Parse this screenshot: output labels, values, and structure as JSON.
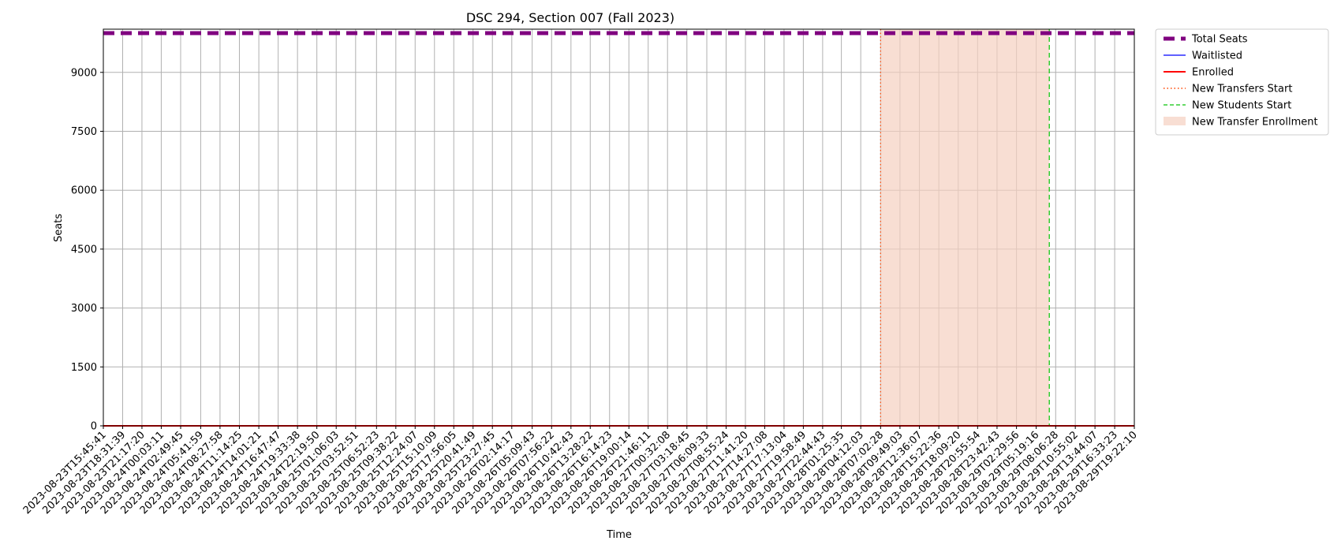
{
  "chart_data": {
    "type": "line",
    "title": "DSC 294, Section 007 (Fall 2023)",
    "xlabel": "Time",
    "ylabel": "Seats",
    "ylim": [
      0,
      10100
    ],
    "y_ticks": [
      0,
      1500,
      3000,
      4500,
      6000,
      7500,
      9000
    ],
    "grid": true,
    "legend_position": "outside-top-right",
    "x": [
      "2023-08-23T15:45:41",
      "2023-08-23T18:31:39",
      "2023-08-23T21:17:20",
      "2023-08-24T00:03:11",
      "2023-08-24T02:49:45",
      "2023-08-24T05:41:59",
      "2023-08-24T08:27:58",
      "2023-08-24T11:14:25",
      "2023-08-24T14:01:21",
      "2023-08-24T16:47:47",
      "2023-08-24T19:33:38",
      "2023-08-24T22:19:50",
      "2023-08-25T01:06:03",
      "2023-08-25T03:52:51",
      "2023-08-25T06:52:23",
      "2023-08-25T09:38:22",
      "2023-08-25T12:24:07",
      "2023-08-25T15:10:09",
      "2023-08-25T17:56:05",
      "2023-08-25T20:41:49",
      "2023-08-25T23:27:45",
      "2023-08-26T02:14:17",
      "2023-08-26T05:09:43",
      "2023-08-26T07:56:22",
      "2023-08-26T10:42:43",
      "2023-08-26T13:28:22",
      "2023-08-26T16:14:23",
      "2023-08-26T19:00:14",
      "2023-08-26T21:46:11",
      "2023-08-27T00:32:08",
      "2023-08-27T03:18:45",
      "2023-08-27T06:09:33",
      "2023-08-27T08:55:24",
      "2023-08-27T11:41:20",
      "2023-08-27T14:27:08",
      "2023-08-27T17:13:04",
      "2023-08-27T19:58:49",
      "2023-08-27T22:44:43",
      "2023-08-28T01:25:35",
      "2023-08-28T04:12:03",
      "2023-08-28T07:02:28",
      "2023-08-28T09:49:03",
      "2023-08-28T12:36:07",
      "2023-08-28T15:22:36",
      "2023-08-28T18:09:20",
      "2023-08-28T20:55:54",
      "2023-08-28T23:42:43",
      "2023-08-29T02:29:56",
      "2023-08-29T05:19:16",
      "2023-08-29T08:06:28",
      "2023-08-29T10:55:02",
      "2023-08-29T13:44:07",
      "2023-08-29T16:33:23",
      "2023-08-29T19:22:10"
    ],
    "series": [
      {
        "name": "Total Seats",
        "constant": 9999,
        "color": "#800080",
        "style": "dashed-thick"
      },
      {
        "name": "Waitlisted",
        "constant": 0,
        "color": "#0000ff",
        "style": "solid-thin"
      },
      {
        "name": "Enrolled",
        "constant": 0,
        "color": "#ff0000",
        "style": "solid"
      }
    ],
    "markers": [
      {
        "name": "New Transfers Start",
        "at": "2023-08-28T07:02:28",
        "color": "#ff4500",
        "style": "dotted"
      },
      {
        "name": "New Students Start",
        "at": "2023-08-29T07:12:00",
        "color": "#32cd32",
        "style": "dashed"
      }
    ],
    "spans": [
      {
        "name": "New Transfer Enrollment",
        "from": "2023-08-28T07:02:28",
        "to": "2023-08-29T07:12:00",
        "color": "#f5d0c0"
      }
    ]
  }
}
